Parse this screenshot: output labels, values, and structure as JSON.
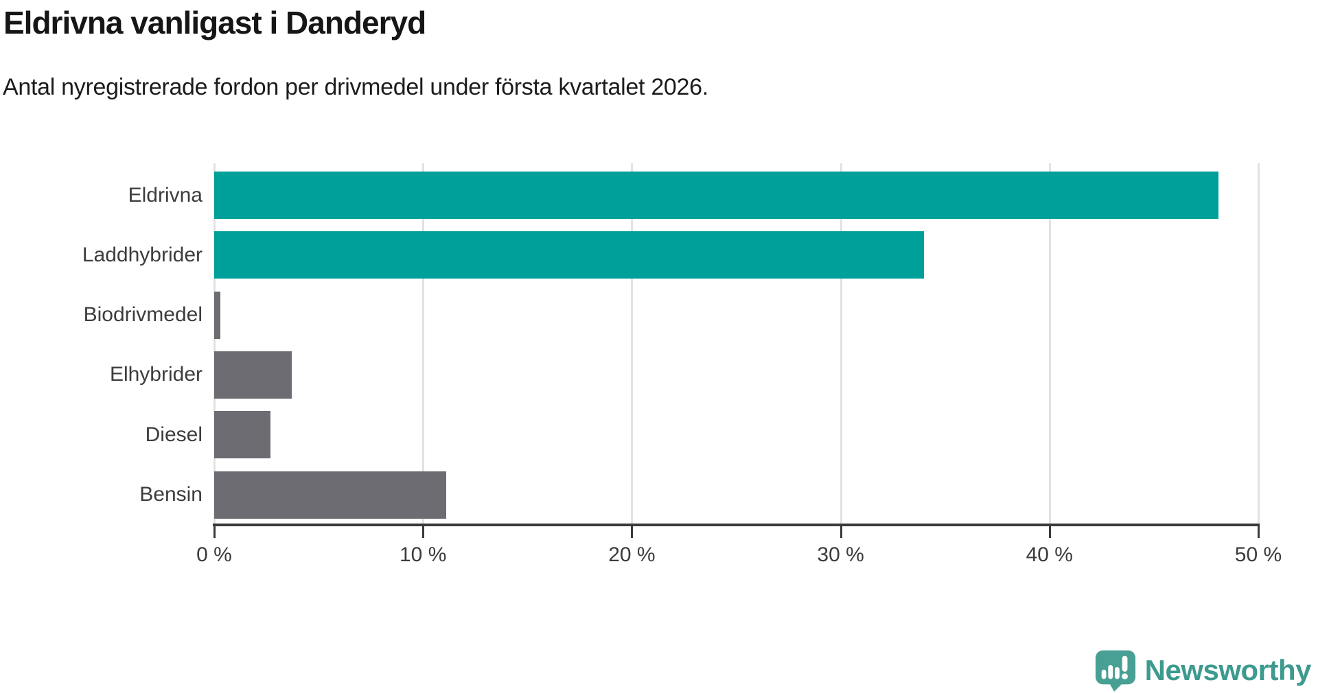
{
  "title": "Eldrivna vanligast i Danderyd",
  "subtitle": "Antal nyregistrerade fordon per drivmedel under första kvartalet 2026.",
  "branding": {
    "name": "Newsworthy",
    "icon_color": "#48a094",
    "text_color": "#3d9a8e"
  },
  "colors": {
    "highlight_bar": "#00a09a",
    "default_bar": "#6c6c72",
    "gridline": "#e2e2e2",
    "axis": "#3a3a3a",
    "label_text": "#3c3c3c"
  },
  "chart_data": {
    "type": "bar",
    "orientation": "horizontal",
    "title": "Eldrivna vanligast i Danderyd",
    "subtitle": "Antal nyregistrerade fordon per drivmedel under första kvartalet 2026.",
    "categories": [
      "Eldrivna",
      "Laddhybrider",
      "Biodrivmedel",
      "Elhybrider",
      "Diesel",
      "Bensin"
    ],
    "values": [
      48.1,
      34.0,
      0.3,
      3.7,
      2.7,
      11.1
    ],
    "unit": "%",
    "bar_colors": [
      "#00a09a",
      "#00a09a",
      "#6c6c72",
      "#6c6c72",
      "#6c6c72",
      "#6c6c72"
    ],
    "xlim": [
      0,
      50
    ],
    "x_ticks": [
      0,
      10,
      20,
      30,
      40,
      50
    ],
    "x_tick_labels": [
      "0 %",
      "10 %",
      "20 %",
      "30 %",
      "40 %",
      "50 %"
    ],
    "grid": true,
    "legend": "none",
    "xlabel": "",
    "ylabel": ""
  }
}
